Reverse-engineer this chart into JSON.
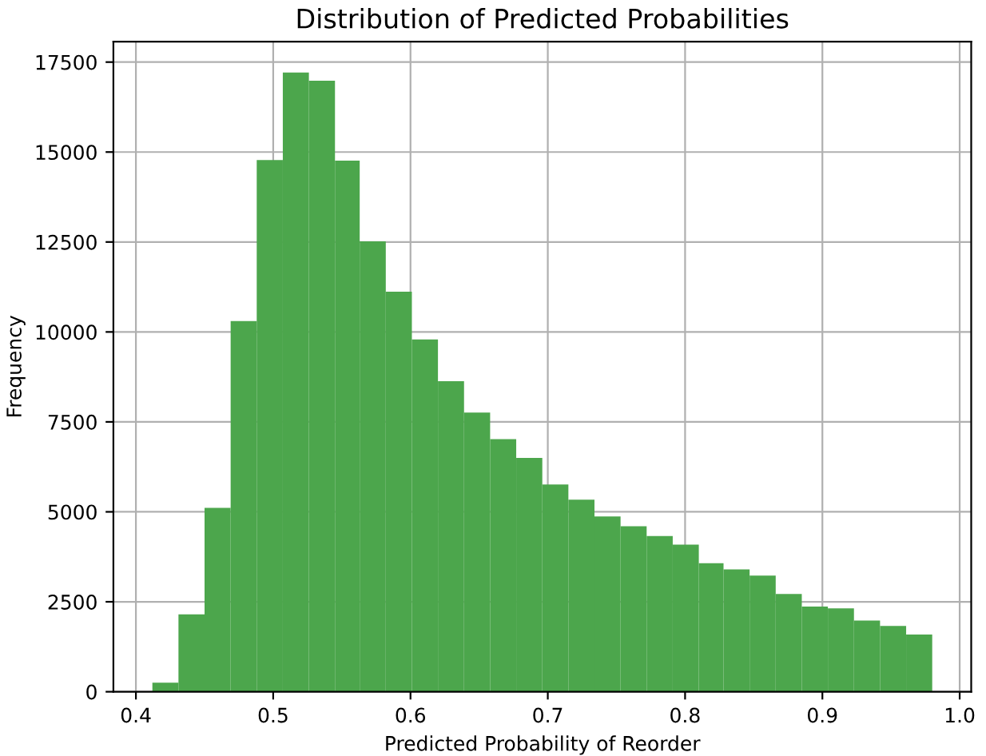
{
  "chart_data": {
    "type": "histogram",
    "title": "Distribution of Predicted Probabilities",
    "xlabel": "Predicted Probability of Reorder",
    "ylabel": "Frequency",
    "bins": [
      0.412,
      0.431,
      0.45,
      0.469,
      0.488,
      0.507,
      0.526,
      0.545,
      0.563,
      0.582,
      0.601,
      0.62,
      0.639,
      0.658,
      0.677,
      0.696,
      0.715,
      0.734,
      0.753,
      0.772,
      0.791,
      0.81,
      0.828,
      0.847,
      0.866,
      0.885,
      0.904,
      0.923,
      0.942,
      0.961,
      0.98
    ],
    "values": [
      250,
      2150,
      5110,
      10300,
      14780,
      17210,
      16980,
      14760,
      12520,
      11120,
      9790,
      8630,
      7760,
      7020,
      6500,
      5760,
      5340,
      4870,
      4600,
      4330,
      4090,
      3570,
      3400,
      3230,
      2720,
      2370,
      2320,
      1980,
      1830,
      1590
    ],
    "color": "#4ca64c",
    "xlim": [
      0.3836,
      1.0084
    ],
    "xticks": [
      0.4,
      0.5,
      0.6,
      0.7,
      0.8,
      0.9,
      {
        "value": 1,
        "label": "1.0"
      }
    ],
    "ylim": [
      0,
      18070
    ],
    "yticks": [
      0,
      2500,
      5000,
      7500,
      10000,
      12500,
      15000,
      17500
    ],
    "grid": true
  }
}
